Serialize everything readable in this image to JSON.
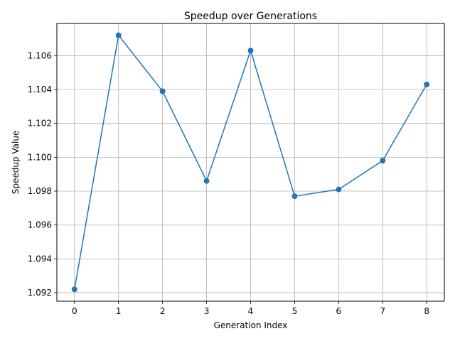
{
  "chart_data": {
    "type": "line",
    "title": "Speedup over Generations",
    "xlabel": "Generation Index",
    "ylabel": "Speedup Value",
    "x": [
      0,
      1,
      2,
      3,
      4,
      5,
      6,
      7,
      8
    ],
    "series": [
      {
        "values": [
          1.0922,
          1.1072,
          1.1039,
          1.0986,
          1.1063,
          1.0977,
          1.0981,
          1.0998,
          1.1043
        ],
        "color": "#1f77b4",
        "marker": "circle"
      }
    ],
    "xlim": [
      -0.4,
      8.4
    ],
    "ylim": [
      1.0915,
      1.1079
    ],
    "xticks": [
      0,
      1,
      2,
      3,
      4,
      5,
      6,
      7,
      8
    ],
    "yticks": [
      1.092,
      1.094,
      1.096,
      1.098,
      1.1,
      1.102,
      1.104,
      1.106
    ],
    "ytick_labels": [
      "1.092",
      "1.094",
      "1.096",
      "1.098",
      "1.100",
      "1.102",
      "1.104",
      "1.106"
    ],
    "grid": true
  }
}
